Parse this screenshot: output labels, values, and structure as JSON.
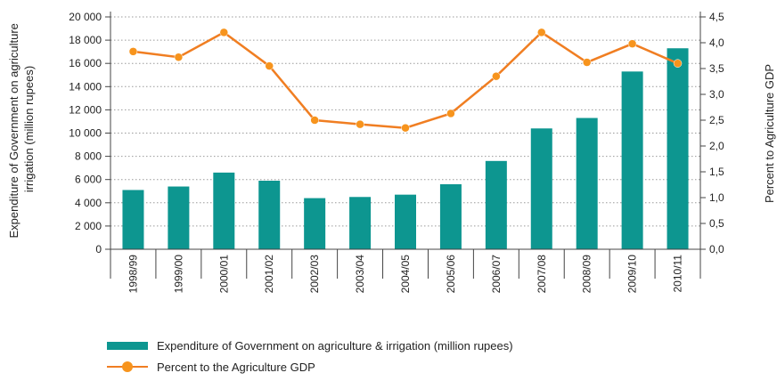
{
  "chart_data": {
    "type": "bar+line",
    "categories": [
      "1998/99",
      "1999/00",
      "2000/01",
      "2001/02",
      "2002/03",
      "2003/04",
      "2004/05",
      "2005/06",
      "2006/07",
      "2007/08",
      "2008/09",
      "2009/10",
      "2010/11"
    ],
    "series": [
      {
        "name": "Expenditure of Government on agriculture & irrigation (million rupees)",
        "type": "bar",
        "axis": "left",
        "color": "#0d9690",
        "values": [
          5100,
          5400,
          6600,
          5900,
          4400,
          4500,
          4700,
          5600,
          7600,
          10400,
          11300,
          15300,
          17300
        ]
      },
      {
        "name": "Percent to the Agriculture GDP",
        "type": "line",
        "axis": "right",
        "color": "#f07e22",
        "marker_color": "#f7941d",
        "values": [
          3.83,
          3.72,
          4.2,
          3.55,
          2.5,
          2.42,
          2.35,
          2.63,
          3.35,
          4.2,
          3.62,
          3.98,
          3.6
        ]
      }
    ],
    "ylabel_left": "Expenditure of Government on agriculture irrigation (million rupees)",
    "ylabel_right": "Percent to Agriculture GDP",
    "ylim_left": [
      0,
      20000
    ],
    "ylim_right": [
      0,
      4.5
    ],
    "yticks_left": [
      "0",
      "2 000",
      "4 000",
      "6 000",
      "8 000",
      "10 000",
      "12 000",
      "14 000",
      "16 000",
      "18 000",
      "20 000"
    ],
    "yticks_right": [
      "0,0",
      "0,5",
      "1,0",
      "1,5",
      "2,0",
      "2,5",
      "3,0",
      "3,5",
      "4,0",
      "4,5"
    ],
    "grid": "horizontal dotted",
    "legend_position": "bottom-left"
  },
  "legend": {
    "bar_label": "Expenditure of Government on agriculture & irrigation (million rupees)",
    "line_label": "Percent to the Agriculture GDP"
  }
}
